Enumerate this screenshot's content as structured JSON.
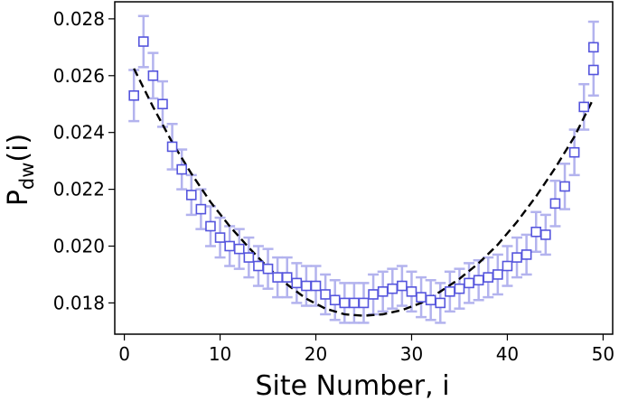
{
  "chart_data": {
    "type": "scatter",
    "title": "",
    "xlabel": "Site Number, i",
    "ylabel_main": "P",
    "ylabel_sub": "dw",
    "ylabel_tail": "(i)",
    "xlim": [
      -1,
      51
    ],
    "ylim": [
      0.0169,
      0.0286
    ],
    "xticks": [
      0,
      10,
      20,
      30,
      40,
      50
    ],
    "xtick_labels": [
      "0",
      "10",
      "20",
      "30",
      "40",
      "50"
    ],
    "yticks": [
      0.018,
      0.02,
      0.022,
      0.024,
      0.026,
      0.028
    ],
    "ytick_labels": [
      "0.018",
      "0.020",
      "0.022",
      "0.024",
      "0.026",
      "0.028"
    ],
    "grid": false,
    "colors": {
      "marker": "#5555dd",
      "errorbar": "#b3b3ee",
      "fit": "#000000"
    },
    "series": [
      {
        "kind": "markers-with-errorbars",
        "marker": "square-open",
        "x": [
          1,
          2,
          3,
          4,
          5,
          6,
          7,
          8,
          9,
          10,
          11,
          12,
          13,
          14,
          15,
          16,
          17,
          18,
          19,
          20,
          21,
          22,
          23,
          24,
          25,
          26,
          27,
          28,
          29,
          30,
          31,
          32,
          33,
          34,
          35,
          36,
          37,
          38,
          39,
          40,
          41,
          42,
          43,
          44,
          45,
          46,
          47,
          48,
          49
        ],
        "y": [
          0.0253,
          0.0272,
          0.026,
          0.025,
          0.0235,
          0.0227,
          0.0218,
          0.0213,
          0.0207,
          0.0203,
          0.02,
          0.0199,
          0.0196,
          0.0193,
          0.0192,
          0.0189,
          0.0189,
          0.0187,
          0.0186,
          0.0186,
          0.0183,
          0.0181,
          0.018,
          0.018,
          0.018,
          0.0183,
          0.0184,
          0.0185,
          0.0186,
          0.0184,
          0.0182,
          0.0181,
          0.018,
          0.0184,
          0.0185,
          0.0187,
          0.0188,
          0.0189,
          0.019,
          0.0193,
          0.0196,
          0.0197,
          0.0205,
          0.0204,
          0.0215,
          0.0221,
          0.0233,
          0.0249,
          0.0262
        ],
        "err": [
          0.0009,
          0.0009,
          0.0008,
          0.0008,
          0.0008,
          0.0007,
          0.0007,
          0.0007,
          0.0007,
          0.0007,
          0.0007,
          0.0007,
          0.0007,
          0.0007,
          0.0007,
          0.0007,
          0.0007,
          0.0007,
          0.0007,
          0.0007,
          0.0007,
          0.0007,
          0.0007,
          0.0007,
          0.0007,
          0.0007,
          0.0007,
          0.0007,
          0.0007,
          0.0007,
          0.0007,
          0.0007,
          0.0007,
          0.0007,
          0.0007,
          0.0007,
          0.0007,
          0.0007,
          0.0007,
          0.0007,
          0.0007,
          0.0007,
          0.0007,
          0.0007,
          0.0008,
          0.0008,
          0.0008,
          0.0008,
          0.0009
        ]
      },
      {
        "kind": "dashed-fit",
        "x": [
          1,
          3,
          5,
          7,
          9,
          11,
          13,
          15,
          17,
          19,
          21,
          23,
          25,
          27,
          29,
          31,
          33,
          35,
          37,
          39,
          41,
          43,
          45,
          47,
          49
        ],
        "y": [
          0.02625,
          0.0249,
          0.02365,
          0.02255,
          0.02155,
          0.0207,
          0.01995,
          0.01925,
          0.01865,
          0.01815,
          0.0178,
          0.0176,
          0.01755,
          0.0176,
          0.01775,
          0.018,
          0.0184,
          0.01885,
          0.0194,
          0.02005,
          0.02085,
          0.02175,
          0.02275,
          0.02385,
          0.0252
        ]
      }
    ]
  },
  "extra_points": {
    "x": [
      49
    ],
    "y": [
      0.027
    ],
    "err": [
      0.0009
    ]
  }
}
